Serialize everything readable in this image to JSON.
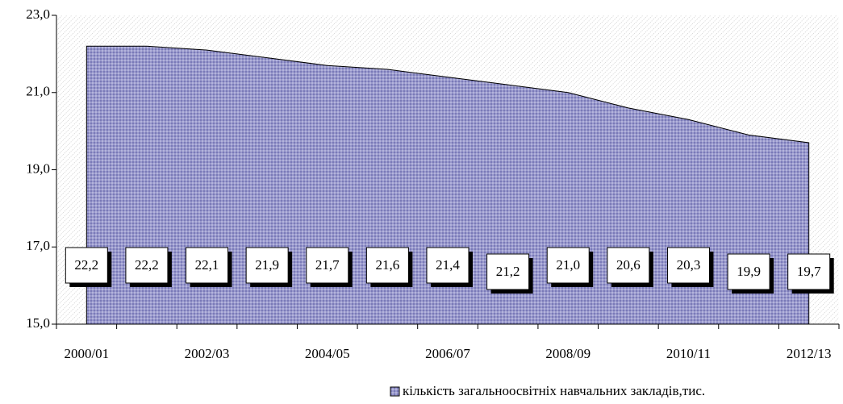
{
  "chart_data": {
    "type": "area",
    "categories": [
      "2000/01",
      null,
      "2002/03",
      null,
      "2004/05",
      null,
      "2006/07",
      null,
      "2008/09",
      null,
      "2010/11",
      null,
      "2012/13"
    ],
    "series": [
      {
        "name": "кількість загальноосвітніх навчальних закладів,тис.",
        "color": "#9999cc",
        "values": [
          22.2,
          22.2,
          22.1,
          21.9,
          21.7,
          21.6,
          21.4,
          21.2,
          21.0,
          20.6,
          20.3,
          19.9,
          19.7
        ],
        "value_labels": [
          "22,2",
          "22,2",
          "22,1",
          "21,9",
          "21,7",
          "21,6",
          "21,4",
          "21,2",
          "21,0",
          "20,6",
          "20,3",
          "19,9",
          "19,7"
        ]
      }
    ],
    "ylim": [
      15,
      23
    ],
    "yticks": [
      {
        "value": 15,
        "label": "15,0"
      },
      {
        "value": 17,
        "label": "17,0"
      },
      {
        "value": 19,
        "label": "19,0"
      },
      {
        "value": 21,
        "label": "21,0"
      },
      {
        "value": 23,
        "label": "23,0"
      }
    ],
    "legend": "bottom"
  }
}
